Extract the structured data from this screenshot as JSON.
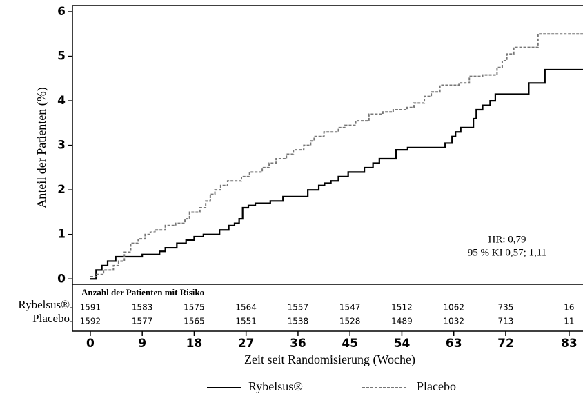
{
  "chart_data": {
    "type": "step",
    "y_label": "Anteil der Patienten (%)",
    "x_label": "Zeit seit Randomisierung (Woche)",
    "xlim": [
      -3.1,
      85.4
    ],
    "xticks": [
      0,
      9,
      18,
      27,
      36,
      45,
      54,
      63,
      72,
      83
    ],
    "ylim": [
      -0.12,
      6.14
    ],
    "yticks": [
      0,
      1,
      2,
      3,
      4,
      5,
      6
    ],
    "annotations": [
      "HR: 0,79",
      "95 % KI 0,57; 1,11"
    ],
    "series": [
      {
        "name": "Rybelsus®",
        "color": "#000000",
        "dash": false,
        "x": [
          0,
          1,
          2,
          3,
          4.4,
          9,
          12,
          13,
          15,
          16.6,
          18,
          19.6,
          20.2,
          22.4,
          24,
          25,
          25.8,
          26.4,
          27.4,
          28.6,
          31.2,
          33.4,
          37.7,
          39.6,
          40.6,
          41.7,
          43,
          44.7,
          47.5,
          49,
          50.1,
          53,
          55,
          61.5,
          62.7,
          63.3,
          64.2,
          66.4,
          66.9,
          68,
          69.3,
          70.2,
          76,
          78.8
        ],
        "values": [
          0,
          0.2,
          0.3,
          0.4,
          0.5,
          0.55,
          0.62,
          0.7,
          0.8,
          0.87,
          0.95,
          1.0,
          1.0,
          1.1,
          1.2,
          1.25,
          1.35,
          1.6,
          1.65,
          1.7,
          1.75,
          1.85,
          2.0,
          2.1,
          2.15,
          2.2,
          2.3,
          2.4,
          2.5,
          2.6,
          2.7,
          2.9,
          2.95,
          3.05,
          3.2,
          3.3,
          3.4,
          3.6,
          3.8,
          3.9,
          4.0,
          4.15,
          4.4,
          4.7
        ]
      },
      {
        "name": "Placebo",
        "color": "#777777",
        "dash": true,
        "x": [
          0,
          1.1,
          2.3,
          4,
          4.9,
          5.9,
          7,
          8.3,
          9.5,
          10.4,
          11.2,
          13,
          14.8,
          16.4,
          17.2,
          19,
          20,
          20.8,
          21.6,
          22.6,
          23.8,
          26.2,
          27.6,
          29.8,
          31,
          32.2,
          34,
          35.2,
          37,
          38.2,
          38.8,
          40.5,
          43,
          44.1,
          46,
          48.3,
          50.7,
          52.5,
          54.9,
          56.1,
          57.9,
          59.1,
          60.6,
          63.9,
          65.7,
          68,
          70.5,
          71.4,
          72.2,
          73.4,
          77.6
        ],
        "values": [
          0.05,
          0.1,
          0.2,
          0.3,
          0.4,
          0.6,
          0.8,
          0.9,
          1.0,
          1.05,
          1.1,
          1.2,
          1.25,
          1.35,
          1.5,
          1.6,
          1.75,
          1.9,
          2.0,
          2.1,
          2.2,
          2.3,
          2.4,
          2.5,
          2.6,
          2.7,
          2.8,
          2.9,
          3.0,
          3.1,
          3.2,
          3.3,
          3.4,
          3.45,
          3.55,
          3.7,
          3.75,
          3.8,
          3.85,
          3.95,
          4.1,
          4.2,
          4.35,
          4.4,
          4.55,
          4.58,
          4.75,
          4.9,
          5.05,
          5.2,
          5.5
        ]
      }
    ],
    "risk_table": {
      "title": "Anzahl der Patienten mit Risiko",
      "rows": [
        {
          "name": "Rybelsus®",
          "values": [
            1591,
            1583,
            1575,
            1564,
            1557,
            1547,
            1512,
            1062,
            735,
            16
          ]
        },
        {
          "name": "Placebo",
          "values": [
            1592,
            1577,
            1565,
            1551,
            1538,
            1528,
            1489,
            1032,
            713,
            11
          ]
        }
      ]
    }
  }
}
